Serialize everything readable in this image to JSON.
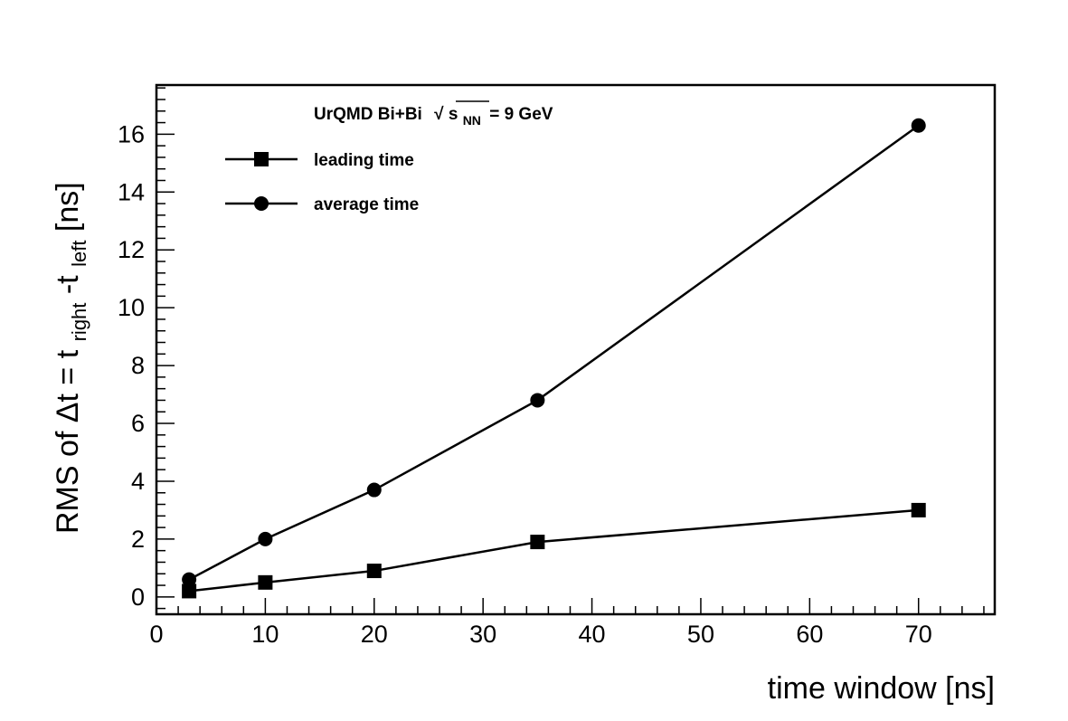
{
  "chart_data": {
    "type": "line",
    "title": "",
    "annotation": {
      "prefix": "UrQMD Bi+Bi",
      "sqrt_symbol": "√",
      "var": "s",
      "var_sub": "NN",
      "suffix": "= 9 GeV"
    },
    "xlabel": "time window [ns]",
    "ylabel": {
      "prefix": "RMS of Δt =  t",
      "sub1": "right",
      "mid": "-t",
      "sub2": "left",
      "suffix": " [ns]"
    },
    "xlim": [
      0,
      77
    ],
    "ylim": [
      -0.6,
      17.7
    ],
    "x_ticks": [
      0,
      10,
      20,
      30,
      40,
      50,
      60,
      70
    ],
    "y_ticks": [
      0,
      2,
      4,
      6,
      8,
      10,
      12,
      14,
      16
    ],
    "x": [
      3,
      10,
      20,
      35,
      70
    ],
    "series": [
      {
        "name": "leading time",
        "marker": "square",
        "values": [
          0.2,
          0.5,
          0.9,
          1.9,
          3.0
        ]
      },
      {
        "name": "average time",
        "marker": "circle",
        "values": [
          0.6,
          2.0,
          3.7,
          6.8,
          16.3
        ]
      }
    ],
    "grid": false,
    "legend_position": "top-left"
  }
}
